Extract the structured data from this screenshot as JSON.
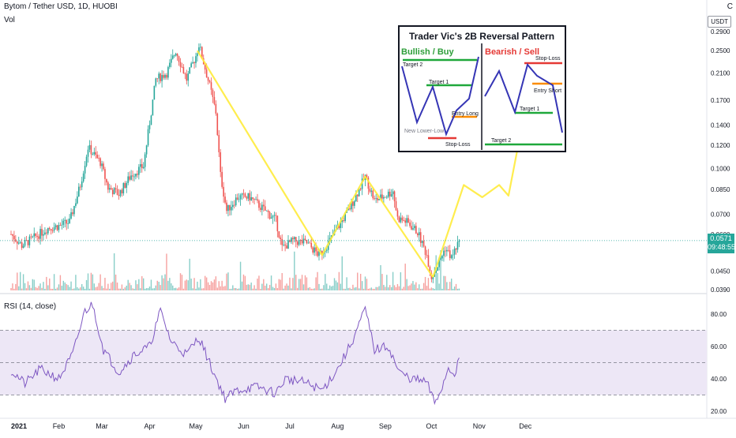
{
  "header": {
    "title": "Bytom / Tether USD, 1D, HUOBI",
    "volume_label": "Vol",
    "rsi_label": "RSI (14, close)",
    "currency_badge": "USDT",
    "corner_glyph": "C"
  },
  "last_price": {
    "value": "0.0571",
    "countdown": "09:48:55"
  },
  "colors": {
    "up": "#26a69a",
    "down": "#ef5350",
    "projection": "#ffeb3b",
    "rsi_line": "#7e57c2",
    "rsi_band": "#ede7f6"
  },
  "inset": {
    "title": "Trader Vic's 2B Reversal Pattern",
    "bullish": {
      "heading": "Bullish / Buy",
      "labels": {
        "target2": "Target 2",
        "target1": "Target 1",
        "entry": "Entry Long",
        "new_low": "New Lower-Low",
        "stop": "Stop-Loss"
      }
    },
    "bearish": {
      "heading": "Bearish / Sell",
      "labels": {
        "stop": "Stop-Loss",
        "entry": "Entry Short",
        "target1": "Target 1",
        "target2": "Target 2"
      }
    }
  },
  "chart_data": [
    {
      "type": "candlestick",
      "name": "Bytom / Tether USD, 1D, HUOBI",
      "y_scale": "log",
      "y_ticks": [
        "0.2900",
        "0.2500",
        "0.2100",
        "0.1700",
        "0.1400",
        "0.1200",
        "0.1000",
        "0.0850",
        "0.0700",
        "0.0600",
        "0.0450",
        "0.0390"
      ],
      "x_ticks": [
        "2021",
        "Feb",
        "Mar",
        "Apr",
        "May",
        "Jun",
        "Jul",
        "Aug",
        "Sep",
        "Oct",
        "Nov",
        "Dec"
      ],
      "last_close": 0.0571,
      "price_path": [
        [
          "2021-01-01",
          0.06
        ],
        [
          "2021-01-08",
          0.055
        ],
        [
          "2021-01-15",
          0.058
        ],
        [
          "2021-01-25",
          0.063
        ],
        [
          "2021-02-01",
          0.064
        ],
        [
          "2021-02-08",
          0.066
        ],
        [
          "2021-02-15",
          0.088
        ],
        [
          "2021-02-20",
          0.118
        ],
        [
          "2021-02-28",
          0.105
        ],
        [
          "2021-03-05",
          0.086
        ],
        [
          "2021-03-12",
          0.082
        ],
        [
          "2021-03-20",
          0.095
        ],
        [
          "2021-03-28",
          0.102
        ],
        [
          "2021-04-05",
          0.2
        ],
        [
          "2021-04-12",
          0.21
        ],
        [
          "2021-04-18",
          0.25
        ],
        [
          "2021-04-25",
          0.2
        ],
        [
          "2021-05-01",
          0.24
        ],
        [
          "2021-05-03",
          0.262
        ],
        [
          "2021-05-10",
          0.19
        ],
        [
          "2021-05-14",
          0.155
        ],
        [
          "2021-05-17",
          0.095
        ],
        [
          "2021-05-21",
          0.072
        ],
        [
          "2021-05-28",
          0.08
        ],
        [
          "2021-06-05",
          0.08
        ],
        [
          "2021-06-15",
          0.072
        ],
        [
          "2021-06-22",
          0.067
        ],
        [
          "2021-06-26",
          0.054
        ],
        [
          "2021-07-03",
          0.057
        ],
        [
          "2021-07-12",
          0.056
        ],
        [
          "2021-07-20",
          0.051
        ],
        [
          "2021-07-25",
          0.055
        ],
        [
          "2021-08-01",
          0.063
        ],
        [
          "2021-08-08",
          0.072
        ],
        [
          "2021-08-15",
          0.085
        ],
        [
          "2021-08-19",
          0.094
        ],
        [
          "2021-08-25",
          0.078
        ],
        [
          "2021-09-01",
          0.081
        ],
        [
          "2021-09-06",
          0.084
        ],
        [
          "2021-09-09",
          0.068
        ],
        [
          "2021-09-15",
          0.066
        ],
        [
          "2021-09-22",
          0.061
        ],
        [
          "2021-09-28",
          0.051
        ],
        [
          "2021-10-01",
          0.043
        ],
        [
          "2021-10-05",
          0.047
        ],
        [
          "2021-10-10",
          0.054
        ],
        [
          "2021-10-14",
          0.05
        ],
        [
          "2021-10-19",
          0.0571
        ]
      ],
      "projection": {
        "color": "#ffeb3b",
        "paths": [
          [
            [
              "2021-05-02",
              0.25
            ],
            [
              "2021-07-22",
              0.051
            ],
            [
              "2021-08-19",
              0.094
            ],
            [
              "2021-10-02",
              0.043
            ]
          ],
          [
            [
              "2021-10-02",
              0.043
            ],
            [
              "2021-10-22",
              0.088
            ],
            [
              "2021-11-03",
              0.08
            ],
            [
              "2021-11-14",
              0.088
            ],
            [
              "2021-11-20",
              0.081
            ],
            [
              "2021-12-08",
              0.246
            ]
          ]
        ]
      }
    },
    {
      "type": "line",
      "name": "RSI (14, close)",
      "y_ticks": [
        "80.00",
        "60.00",
        "40.00",
        "20.00"
      ],
      "ylim": [
        18,
        92
      ],
      "band": [
        30,
        70
      ],
      "midline": 50,
      "series": [
        {
          "values": [
            [
              "2021-01-01",
              45
            ],
            [
              "2021-01-10",
              37
            ],
            [
              "2021-01-20",
              46
            ],
            [
              "2021-02-01",
              40
            ],
            [
              "2021-02-10",
              55
            ],
            [
              "2021-02-18",
              82
            ],
            [
              "2021-02-23",
              86
            ],
            [
              "2021-03-02",
              58
            ],
            [
              "2021-03-12",
              44
            ],
            [
              "2021-03-22",
              55
            ],
            [
              "2021-04-01",
              60
            ],
            [
              "2021-04-08",
              82
            ],
            [
              "2021-04-15",
              63
            ],
            [
              "2021-04-25",
              55
            ],
            [
              "2021-05-03",
              66
            ],
            [
              "2021-05-12",
              45
            ],
            [
              "2021-05-20",
              28
            ],
            [
              "2021-05-28",
              33
            ],
            [
              "2021-06-10",
              35
            ],
            [
              "2021-06-22",
              31
            ],
            [
              "2021-06-28",
              40
            ],
            [
              "2021-07-10",
              38
            ],
            [
              "2021-07-22",
              33
            ],
            [
              "2021-08-01",
              46
            ],
            [
              "2021-08-10",
              62
            ],
            [
              "2021-08-19",
              83
            ],
            [
              "2021-08-25",
              58
            ],
            [
              "2021-09-03",
              60
            ],
            [
              "2021-09-10",
              44
            ],
            [
              "2021-09-18",
              40
            ],
            [
              "2021-09-28",
              38
            ],
            [
              "2021-10-03",
              25
            ],
            [
              "2021-10-08",
              35
            ],
            [
              "2021-10-12",
              47
            ],
            [
              "2021-10-16",
              43
            ],
            [
              "2021-10-19",
              53
            ]
          ]
        }
      ]
    }
  ]
}
